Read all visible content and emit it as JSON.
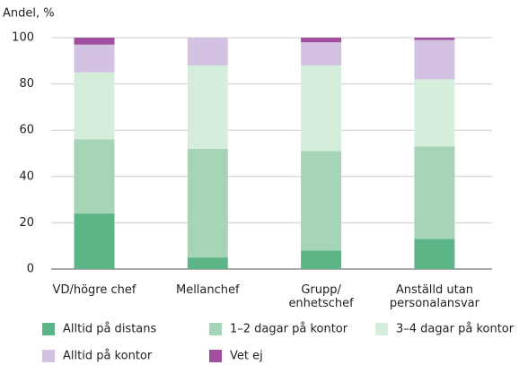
{
  "chart_data": {
    "type": "stacked_bar",
    "y_label": "Andel, %",
    "categories": [
      "VD/högre chef",
      "Mellanchef",
      "Grupp/\nenhetschef",
      "Anställd utan\npersonalansvar"
    ],
    "series": [
      {
        "name": "Alltid på distans",
        "color": "#5bb587",
        "values": [
          24,
          5,
          8,
          13
        ]
      },
      {
        "name": "1–2 dagar på kontor",
        "color": "#a6d4b6",
        "values": [
          32,
          47,
          43,
          40
        ]
      },
      {
        "name": "3–4 dagar på kontor",
        "color": "#d5eedc",
        "values": [
          29,
          36,
          37,
          29
        ]
      },
      {
        "name": "Alltid på kontor",
        "color": "#d3c2e2",
        "values": [
          12,
          12,
          10,
          17
        ]
      },
      {
        "name": "Vet ej",
        "color": "#a0509e",
        "values": [
          3,
          0,
          2,
          1
        ]
      }
    ],
    "ylim": [
      0,
      100
    ],
    "yticks": [
      0,
      20,
      40,
      60,
      80,
      100
    ],
    "grid": true
  }
}
